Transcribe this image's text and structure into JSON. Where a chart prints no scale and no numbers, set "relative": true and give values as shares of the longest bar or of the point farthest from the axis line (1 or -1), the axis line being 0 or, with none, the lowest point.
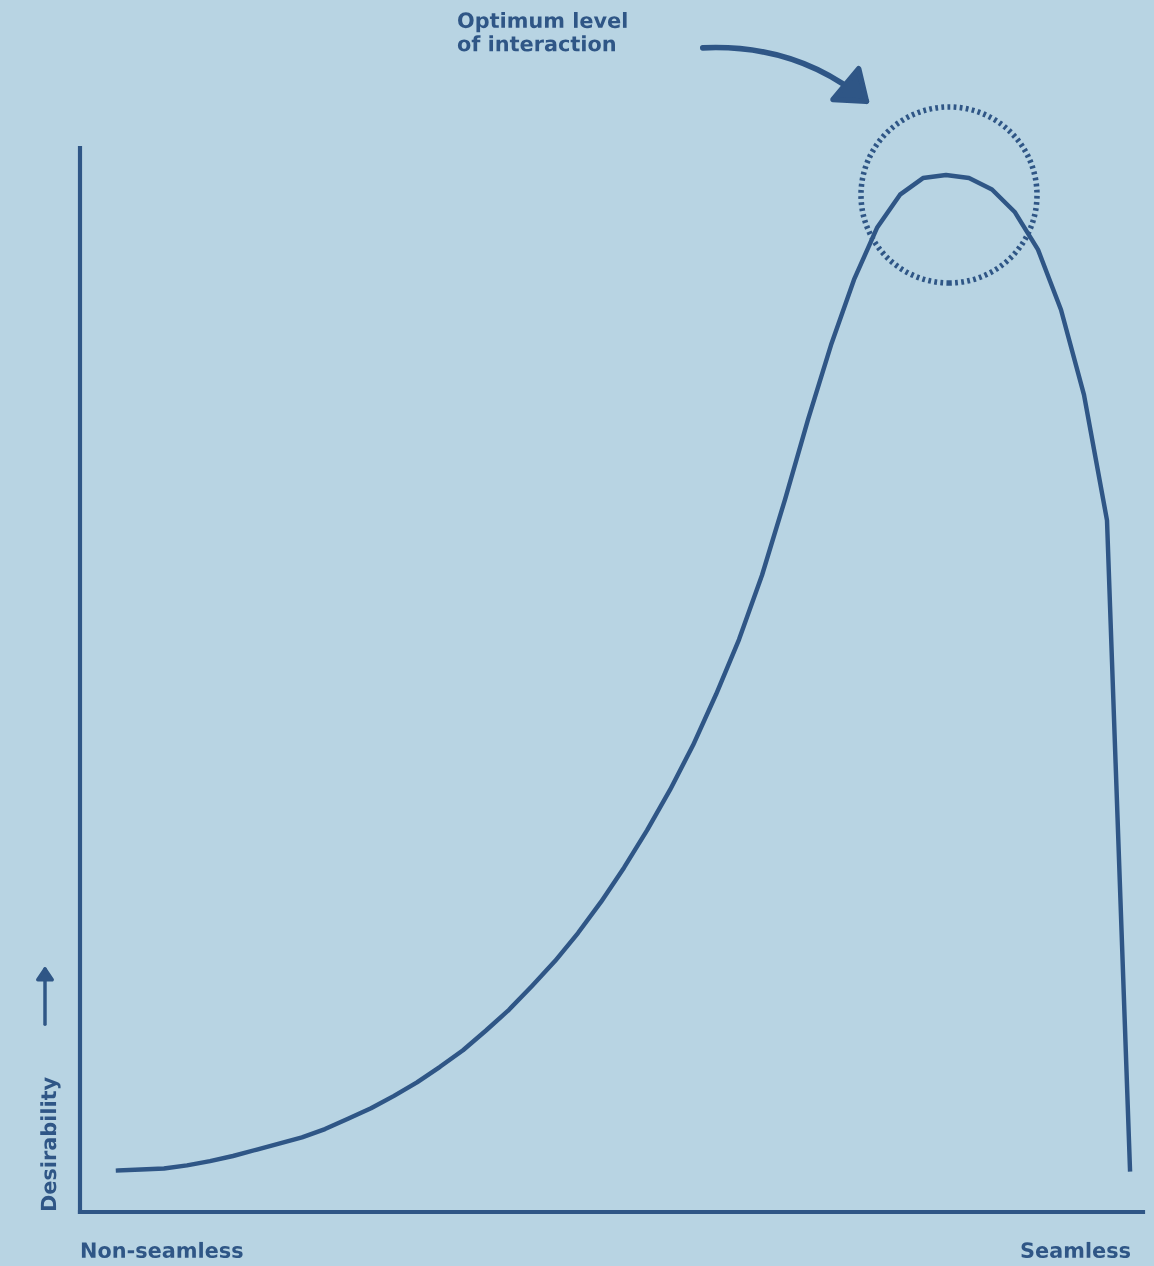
{
  "chart_data": {
    "type": "line",
    "relative": true,
    "ylabel": "Desirability",
    "categories": [
      null,
      null,
      null,
      null,
      null,
      null,
      null,
      null,
      null,
      null,
      null,
      null,
      null,
      null,
      null,
      null,
      null,
      null,
      null,
      null,
      null,
      null,
      null,
      null,
      null,
      null,
      null,
      null,
      null,
      null,
      null,
      null,
      null,
      null,
      null,
      null,
      null,
      null,
      null,
      null,
      null,
      null,
      null,
      null,
      null
    ],
    "series": [
      {
        "color": "#2f5686",
        "values": [
          0.04,
          0.041,
          0.042,
          0.045,
          0.049,
          0.054,
          0.06,
          0.066,
          0.072,
          0.08,
          0.09,
          0.1,
          0.112,
          0.125,
          0.14,
          0.156,
          0.175,
          0.195,
          0.218,
          0.242,
          0.269,
          0.299,
          0.332,
          0.368,
          0.407,
          0.45,
          0.499,
          0.552,
          0.614,
          0.687,
          0.764,
          0.836,
          0.899,
          0.949,
          0.981,
          0.997,
          1.0,
          0.997,
          0.986,
          0.964,
          0.928,
          0.87,
          0.788,
          0.667,
          0.041
        ]
      }
    ],
    "annotations": [
      "Optimum level\nof interaction",
      "Non-seamless",
      "Seamless"
    ],
    "legend": false,
    "marker": "none",
    "line_style": "solid"
  }
}
